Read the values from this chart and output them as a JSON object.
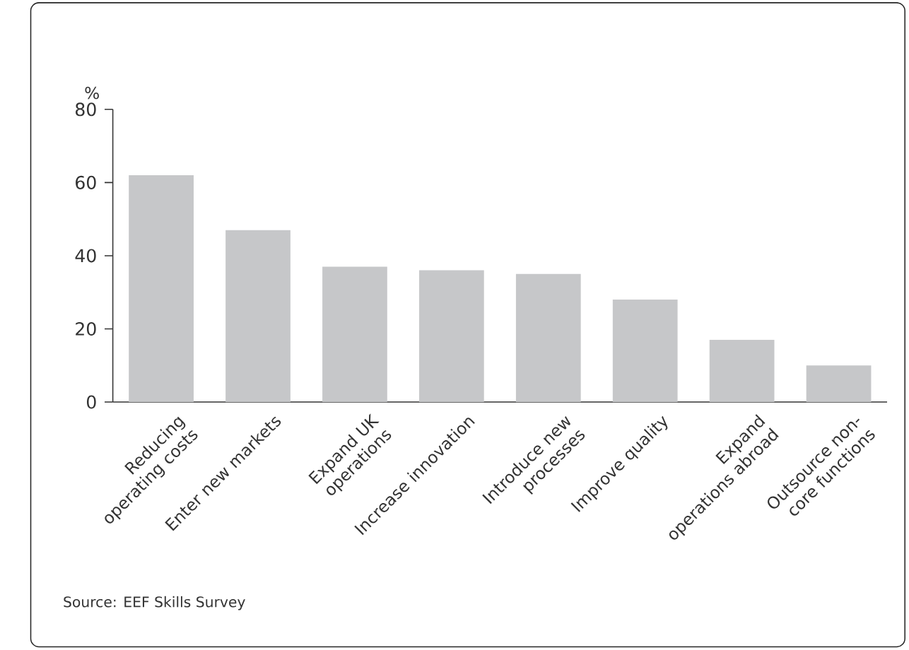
{
  "chart_data": {
    "type": "bar",
    "ylabel": "%",
    "categories": [
      "Reducing operating costs",
      "Enter new markets",
      "Expand UK operations",
      "Increase innovation",
      "Introduce new processes",
      "Improve quality",
      "Expand operations abroad",
      "Outsource non-core functions"
    ],
    "values": [
      62,
      47,
      37,
      36,
      35,
      28,
      17,
      10
    ],
    "color": "#c6c7c9",
    "ylim": [
      0,
      80
    ],
    "yticks": [
      0,
      20,
      40,
      60,
      80
    ],
    "annotations": [
      "Source: EEF Skills Survey"
    ]
  }
}
